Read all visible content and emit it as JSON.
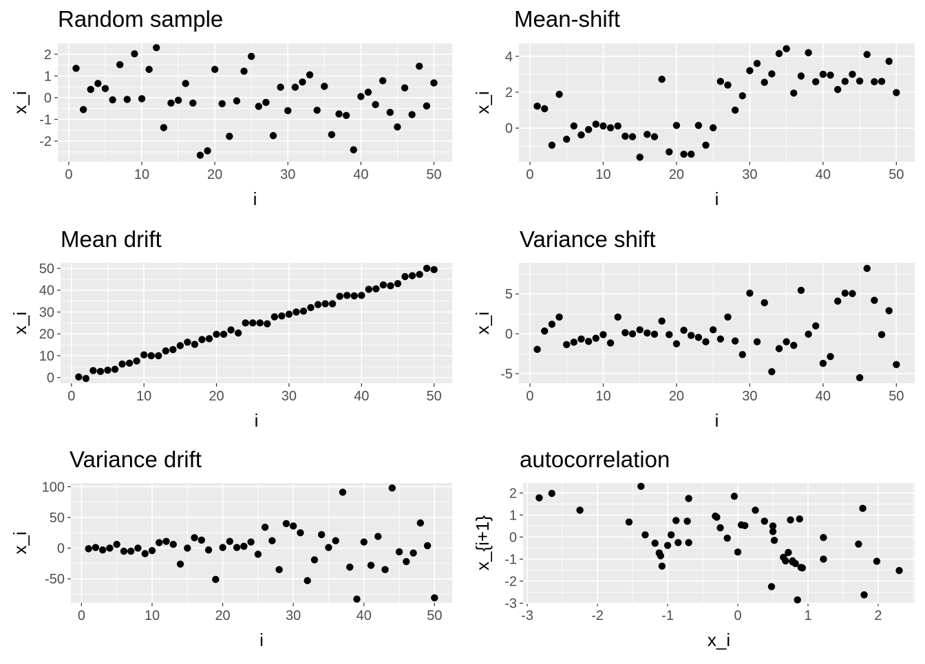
{
  "colors": {
    "panel_background": "#ebebeb",
    "gridline": "#ffffff",
    "point": "#000000",
    "tick_text": "#4d4d4d"
  },
  "chart_data": [
    {
      "type": "scatter",
      "title": "Random sample",
      "xlabel": "i",
      "ylabel": "x_i",
      "xlim": [
        -1.5,
        52.5
      ],
      "ylim": [
        -2.95,
        2.5
      ],
      "xticks": [
        0,
        10,
        20,
        30,
        40,
        50
      ],
      "yticks": [
        -2,
        -1,
        0,
        1,
        2
      ],
      "x": [
        1,
        2,
        3,
        4,
        5,
        6,
        7,
        8,
        9,
        10,
        11,
        12,
        13,
        14,
        15,
        16,
        17,
        18,
        19,
        20,
        21,
        22,
        23,
        24,
        25,
        26,
        27,
        28,
        29,
        30,
        31,
        32,
        33,
        34,
        35,
        36,
        37,
        38,
        39,
        40,
        41,
        42,
        43,
        44,
        45,
        46,
        47,
        48,
        49,
        50
      ],
      "y": [
        1.35,
        -0.55,
        0.38,
        0.65,
        0.42,
        -0.1,
        1.52,
        -0.08,
        2.02,
        -0.05,
        1.3,
        2.3,
        -1.38,
        -0.25,
        -0.12,
        0.65,
        -0.25,
        -2.65,
        -2.45,
        1.3,
        -0.28,
        -1.78,
        -0.15,
        1.22,
        1.9,
        -0.4,
        -0.22,
        -1.75,
        0.48,
        -0.6,
        0.48,
        0.72,
        1.05,
        -0.58,
        0.52,
        -1.7,
        -0.75,
        -0.82,
        -2.4,
        0.05,
        0.25,
        -0.32,
        0.78,
        -0.68,
        -1.35,
        0.45,
        -0.78,
        1.45,
        -0.38,
        0.68
      ]
    },
    {
      "type": "scatter",
      "title": "Mean-shift",
      "xlabel": "i",
      "ylabel": "x_i",
      "xlim": [
        -1.5,
        52.5
      ],
      "ylim": [
        -1.87,
        4.72
      ],
      "xticks": [
        0,
        10,
        20,
        30,
        40,
        50
      ],
      "yticks": [
        0,
        2,
        4
      ],
      "x": [
        1,
        2,
        3,
        4,
        5,
        6,
        7,
        8,
        9,
        10,
        11,
        12,
        13,
        14,
        15,
        16,
        17,
        18,
        19,
        20,
        21,
        22,
        23,
        24,
        25,
        26,
        27,
        28,
        29,
        30,
        31,
        32,
        33,
        34,
        35,
        36,
        37,
        38,
        39,
        40,
        41,
        42,
        43,
        44,
        45,
        46,
        47,
        48,
        49,
        50
      ],
      "y": [
        1.22,
        1.08,
        -0.95,
        1.88,
        -0.62,
        0.12,
        -0.38,
        -0.08,
        0.22,
        0.12,
        0.02,
        0.12,
        -0.45,
        -0.48,
        -1.62,
        -0.35,
        -0.48,
        2.72,
        -1.32,
        0.15,
        -1.45,
        -1.45,
        0.15,
        -0.95,
        0.02,
        2.6,
        2.4,
        1.0,
        1.8,
        3.2,
        3.6,
        2.55,
        3.02,
        4.15,
        4.42,
        1.95,
        2.9,
        4.2,
        2.58,
        3.0,
        2.95,
        2.15,
        2.6,
        3.0,
        2.62,
        4.1,
        2.58,
        2.6,
        3.72,
        1.98
      ]
    },
    {
      "type": "scatter",
      "title": "Mean drift",
      "xlabel": "i",
      "ylabel": "x_i",
      "xlim": [
        -1.5,
        52.5
      ],
      "ylim": [
        -2.6,
        52.5
      ],
      "xticks": [
        0,
        10,
        20,
        30,
        40,
        50
      ],
      "yticks": [
        0,
        10,
        20,
        30,
        40,
        50
      ],
      "x": [
        1,
        2,
        3,
        4,
        5,
        6,
        7,
        8,
        9,
        10,
        11,
        12,
        13,
        14,
        15,
        16,
        17,
        18,
        19,
        20,
        21,
        22,
        23,
        24,
        25,
        26,
        27,
        28,
        29,
        30,
        31,
        32,
        33,
        34,
        35,
        36,
        37,
        38,
        39,
        40,
        41,
        42,
        43,
        44,
        45,
        46,
        47,
        48,
        49,
        50
      ],
      "y": [
        0.3,
        -0.4,
        3.2,
        2.8,
        3.4,
        3.8,
        6.2,
        6.6,
        7.6,
        10.4,
        10.0,
        10.0,
        12.2,
        12.8,
        14.6,
        16.2,
        15.2,
        17.4,
        17.8,
        19.8,
        19.8,
        21.8,
        20.4,
        25.0,
        25.0,
        25.0,
        24.6,
        27.8,
        28.2,
        29.0,
        30.0,
        30.4,
        32.0,
        33.4,
        33.8,
        33.8,
        37.2,
        37.6,
        37.4,
        37.6,
        40.4,
        40.6,
        42.4,
        42.0,
        43.0,
        46.2,
        46.6,
        47.2,
        50.0,
        49.4
      ]
    },
    {
      "type": "scatter",
      "title": "Variance shift",
      "xlabel": "i",
      "ylabel": "x_i",
      "xlim": [
        -1.5,
        52.5
      ],
      "ylim": [
        -6.2,
        8.9
      ],
      "xticks": [
        0,
        10,
        20,
        30,
        40,
        50
      ],
      "yticks": [
        -5,
        0,
        5
      ],
      "x": [
        1,
        2,
        3,
        4,
        5,
        6,
        7,
        8,
        9,
        10,
        11,
        12,
        13,
        14,
        15,
        16,
        17,
        18,
        19,
        20,
        21,
        22,
        23,
        24,
        25,
        26,
        27,
        28,
        29,
        30,
        31,
        32,
        33,
        34,
        35,
        36,
        37,
        38,
        39,
        40,
        41,
        42,
        43,
        44,
        45,
        46,
        47,
        48,
        49,
        50
      ],
      "y": [
        -1.95,
        0.35,
        1.2,
        2.1,
        -1.35,
        -1.05,
        -0.65,
        -0.95,
        -0.55,
        -0.1,
        -1.15,
        2.1,
        0.15,
        0.0,
        0.5,
        0.1,
        -0.05,
        1.6,
        -0.1,
        -1.25,
        0.45,
        -0.2,
        -0.45,
        -1.0,
        0.5,
        -0.65,
        2.1,
        -0.9,
        -2.6,
        5.1,
        -1.0,
        3.9,
        -4.75,
        -1.85,
        -1.0,
        -1.45,
        5.45,
        -0.05,
        1.0,
        -3.7,
        -2.85,
        4.1,
        5.1,
        5.05,
        -5.5,
        8.2,
        4.2,
        -0.1,
        2.9,
        -3.85
      ]
    },
    {
      "type": "scatter",
      "title": "Variance drift",
      "xlabel": "i",
      "ylabel": "x_i",
      "xlim": [
        -1.5,
        52.5
      ],
      "ylim": [
        -89,
        106
      ],
      "xticks": [
        0,
        10,
        20,
        30,
        40,
        50
      ],
      "yticks": [
        -50,
        0,
        50,
        100
      ],
      "x": [
        1,
        2,
        3,
        4,
        5,
        6,
        7,
        8,
        9,
        10,
        11,
        12,
        13,
        14,
        15,
        16,
        17,
        18,
        19,
        20,
        21,
        22,
        23,
        24,
        25,
        26,
        27,
        28,
        29,
        30,
        31,
        32,
        33,
        34,
        35,
        36,
        37,
        38,
        39,
        40,
        41,
        42,
        43,
        44,
        45,
        46,
        47,
        48,
        49,
        50
      ],
      "y": [
        -1,
        1,
        -3,
        0,
        6,
        -5,
        -5,
        0,
        -9,
        -4,
        9,
        11,
        6,
        -26,
        0,
        17,
        13,
        -3,
        -51,
        1,
        11,
        1,
        3,
        10,
        -10,
        34,
        12,
        -35,
        40,
        36,
        25,
        -53,
        -19,
        22,
        1,
        12,
        91,
        -31,
        -83,
        10,
        -28,
        19,
        -35,
        98,
        -6,
        -22,
        -8,
        41,
        4,
        -81
      ]
    },
    {
      "type": "scatter",
      "title": "autocorrelation",
      "xlabel": "x_i",
      "ylabel": "x_{i+1}",
      "xlim": [
        -3.06,
        2.52
      ],
      "ylim": [
        -2.98,
        2.45
      ],
      "xticks": [
        -3,
        -2,
        -1,
        0,
        1,
        2
      ],
      "yticks": [
        -3,
        -2,
        -1,
        0,
        1,
        2
      ],
      "x": [
        -2.83,
        -2.65,
        -2.25,
        -1.55,
        -1.38,
        -1.32,
        -1.18,
        -1.12,
        -1.1,
        -1.08,
        -1.0,
        -0.95,
        -0.88,
        -0.85,
        -0.72,
        -0.7,
        -0.7,
        -0.32,
        -0.3,
        -0.25,
        -0.15,
        -0.05,
        0.0,
        0.05,
        0.1,
        0.25,
        0.38,
        0.48,
        0.5,
        0.5,
        0.52,
        0.65,
        0.68,
        0.72,
        0.75,
        0.78,
        0.78,
        0.82,
        0.85,
        0.88,
        0.9,
        0.92,
        1.22,
        1.22,
        1.72,
        1.78,
        1.8,
        1.98,
        2.3
      ],
      "y": [
        1.78,
        1.98,
        1.22,
        0.68,
        2.3,
        0.1,
        -0.28,
        -0.72,
        -0.85,
        -1.32,
        -0.38,
        0.1,
        0.75,
        -0.25,
        0.72,
        -0.25,
        1.75,
        0.95,
        0.9,
        0.42,
        -0.05,
        1.85,
        -0.68,
        0.55,
        0.52,
        1.22,
        0.72,
        -2.25,
        0.5,
        0.25,
        -0.15,
        -0.92,
        -1.08,
        -0.7,
        0.78,
        -1.08,
        -1.12,
        -1.2,
        -2.85,
        0.82,
        -1.38,
        -1.4,
        -0.02,
        -1.0,
        -0.32,
        1.3,
        -2.62,
        -1.1,
        -1.52
      ]
    }
  ]
}
